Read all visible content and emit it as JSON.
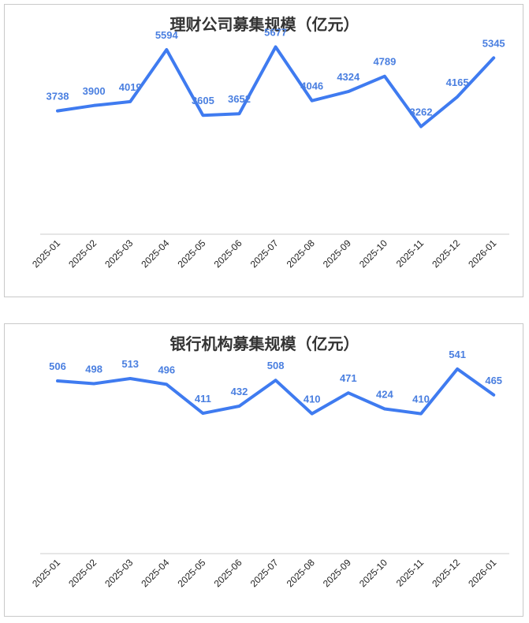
{
  "chart_data": [
    {
      "type": "line",
      "title": "理财公司募集规模（亿元）",
      "categories": [
        "2025-01",
        "2025-02",
        "2025-03",
        "2025-04",
        "2025-05",
        "2025-06",
        "2025-07",
        "2025-08",
        "2025-09",
        "2025-10",
        "2025-11",
        "2025-12",
        "2026-01"
      ],
      "values": [
        3738,
        3900,
        4019,
        5594,
        3605,
        3652,
        5677,
        4046,
        4324,
        4789,
        3262,
        4165,
        5345
      ],
      "ylim": [
        0,
        6000
      ],
      "grid": false,
      "line_color": "#3f7bf0",
      "label_color": "#4a7fe0"
    },
    {
      "type": "line",
      "title": "银行机构募集规模（亿元）",
      "categories": [
        "2025-01",
        "2025-02",
        "2025-03",
        "2025-04",
        "2025-05",
        "2025-06",
        "2025-07",
        "2025-08",
        "2025-09",
        "2025-10",
        "2025-11",
        "2025-12",
        "2026-01"
      ],
      "values": [
        506,
        498,
        513,
        496,
        411,
        432,
        508,
        410,
        471,
        424,
        410,
        541,
        465
      ],
      "ylim": [
        0,
        580
      ],
      "grid": false,
      "line_color": "#3f7bf0",
      "label_color": "#4a7fe0"
    }
  ]
}
